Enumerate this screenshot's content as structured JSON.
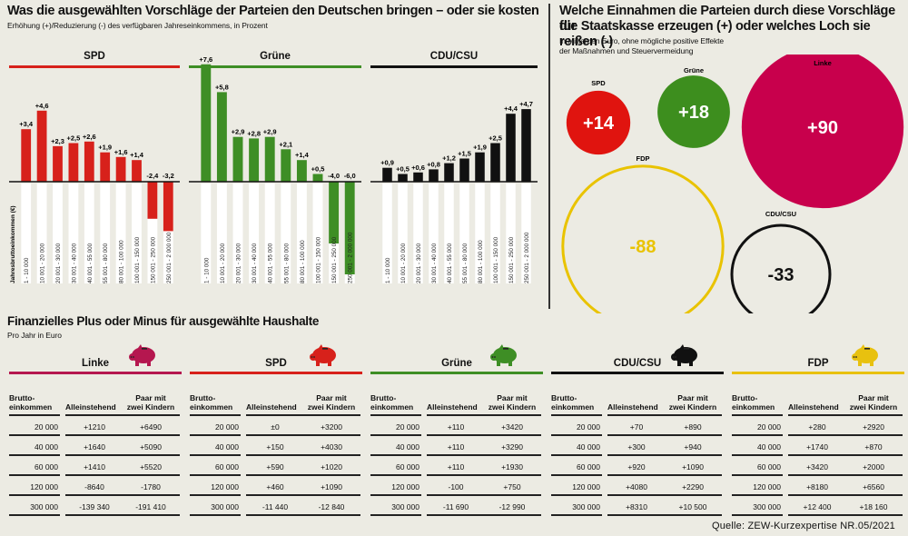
{
  "left": {
    "title": "Was die ausgewählten Vorschläge der Parteien den Deutschen bringen – oder sie kosten",
    "subtitle": "Erhöhung (+)/Reduzierung (-) des verfügbaren Jahreseinkommens, in Prozent"
  },
  "right": {
    "title_line1": "Welche Einnahmen die Parteien durch diese Vorschläge für",
    "title_line2": "die Staatskasse erzeugen (+) oder welches Loch sie reißen (-)",
    "subtitle_line1": "In Milliarden Euro, ohne mögliche positive Effekte",
    "subtitle_line2": "der Maßnahmen und Steuervermeidung"
  },
  "households": {
    "title": "Finanzielles Plus oder Minus für ausgewählte Haushalte",
    "subtitle": "Pro Jahr in Euro",
    "col_headers": {
      "income_line1": "Brutto-",
      "income_line2": "einkommen",
      "single": "Alleinstehend",
      "couple_line1": "Paar mit",
      "couple_line2": "zwei Kindern"
    },
    "parties": [
      {
        "name": "Linke",
        "color": "#b5174f",
        "rows": [
          [
            "20 000",
            "+1210",
            "+6490"
          ],
          [
            "40 000",
            "+1640",
            "+5090"
          ],
          [
            "60 000",
            "+1410",
            "+5520"
          ],
          [
            "120 000",
            "-8640",
            "-1780"
          ],
          [
            "300 000",
            "-139 340",
            "-191 410"
          ]
        ]
      },
      {
        "name": "SPD",
        "color": "#d7211b",
        "rows": [
          [
            "20 000",
            "±0",
            "+3200"
          ],
          [
            "40 000",
            "+150",
            "+4030"
          ],
          [
            "60 000",
            "+590",
            "+1020"
          ],
          [
            "120 000",
            "+460",
            "+1090"
          ],
          [
            "300 000",
            "-11 440",
            "-12 840"
          ]
        ]
      },
      {
        "name": "Grüne",
        "color": "#3e8e25",
        "rows": [
          [
            "20 000",
            "+110",
            "+3420"
          ],
          [
            "40 000",
            "+110",
            "+3290"
          ],
          [
            "60 000",
            "+110",
            "+1930"
          ],
          [
            "120 000",
            "-100",
            "+750"
          ],
          [
            "300 000",
            "-11 690",
            "-12 990"
          ]
        ]
      },
      {
        "name": "CDU/CSU",
        "color": "#111111",
        "rows": [
          [
            "20 000",
            "+70",
            "+890"
          ],
          [
            "40 000",
            "+300",
            "+940"
          ],
          [
            "60 000",
            "+920",
            "+1090"
          ],
          [
            "120 000",
            "+4080",
            "+2290"
          ],
          [
            "300 000",
            "+8310",
            "+10 500"
          ]
        ]
      },
      {
        "name": "FDP",
        "color": "#e8c10f",
        "rows": [
          [
            "20 000",
            "+280",
            "+2920"
          ],
          [
            "40 000",
            "+1740",
            "+870"
          ],
          [
            "60 000",
            "+3420",
            "+2000"
          ],
          [
            "120 000",
            "+8180",
            "+6560"
          ],
          [
            "300 000",
            "+12 400",
            "+18 160"
          ]
        ]
      }
    ]
  },
  "source": "Quelle:  ZEW-Kurzexpertise NR.05/2021",
  "chart_data": [
    {
      "type": "bar",
      "title": "SPD",
      "ylabel": "Jahresbruttoeinkommen (€)",
      "unit": "%",
      "color": "#d7211b",
      "categories": [
        "1 - 10 000",
        "10 001 - 20 000",
        "20 001 - 30 000",
        "30 001 - 40 000",
        "40 001 - 55 000",
        "55 001 - 80 000",
        "80 001 - 100 000",
        "100 001 - 150 000",
        "150 001 - 250 000",
        "250 001 - 2 000 000"
      ],
      "values": [
        3.4,
        4.6,
        2.3,
        2.5,
        2.6,
        1.9,
        1.6,
        1.4,
        -2.4,
        -3.2
      ],
      "labels": [
        "+3,4",
        "+4,6",
        "+2,3",
        "+2,5",
        "+2,6",
        "+1,9",
        "+1,6",
        "+1,4",
        "-2,4",
        "-3,2"
      ]
    },
    {
      "type": "bar",
      "title": "Grüne",
      "unit": "%",
      "color": "#3e8e25",
      "categories": [
        "1 - 10 000",
        "10 001 - 20 000",
        "20 001 - 30 000",
        "30 001 - 40 000",
        "40 001 - 55 000",
        "55 001 - 80 000",
        "80 001 - 100 000",
        "100 001 - 150 000",
        "150 001 - 250 000",
        "250 001 - 2 000 000"
      ],
      "values": [
        7.6,
        5.8,
        2.9,
        2.8,
        2.9,
        2.1,
        1.4,
        0.5,
        -4.0,
        -6.0
      ],
      "labels": [
        "+7,6",
        "+5,8",
        "+2,9",
        "+2,8",
        "+2,9",
        "+2,1",
        "+1,4",
        "+0,5",
        "-4,0",
        "-6,0"
      ]
    },
    {
      "type": "bar",
      "title": "CDU/CSU",
      "unit": "%",
      "color": "#111111",
      "categories": [
        "1 - 10 000",
        "10 001 - 20 000",
        "20 001 - 30 000",
        "30 001 - 40 000",
        "40 001 - 55 000",
        "55 001 - 80 000",
        "80 001 - 100 000",
        "100 001 - 150 000",
        "150 001 - 250 000",
        "250 001 - 2 000 000"
      ],
      "values": [
        0.9,
        0.5,
        0.6,
        0.8,
        1.2,
        1.5,
        1.9,
        2.5,
        4.4,
        4.7
      ],
      "labels": [
        "+0,9",
        "+0,5",
        "+0,6",
        "+0,8",
        "+1,2",
        "+1,5",
        "+1,9",
        "+2,5",
        "+4,4",
        "+4,7"
      ]
    },
    {
      "type": "bubble",
      "title": "Welche Einnahmen die Parteien durch diese Vorschläge für die Staatskasse erzeugen (+) oder welches Loch sie reißen (-)",
      "unit": "Mrd. Euro",
      "items": [
        {
          "party": "SPD",
          "value": 14,
          "label": "+14",
          "color": "#e0140f",
          "filled": true
        },
        {
          "party": "Grüne",
          "value": 18,
          "label": "+18",
          "color": "#3d8e1e",
          "filled": true
        },
        {
          "party": "Linke",
          "value": 90,
          "label": "+90",
          "color": "#c8004c",
          "filled": true
        },
        {
          "party": "FDP",
          "value": -88,
          "label": "-88",
          "color": "#e9c300",
          "filled": false
        },
        {
          "party": "CDU/CSU",
          "value": -33,
          "label": "-33",
          "color": "#111111",
          "filled": false
        }
      ]
    }
  ]
}
